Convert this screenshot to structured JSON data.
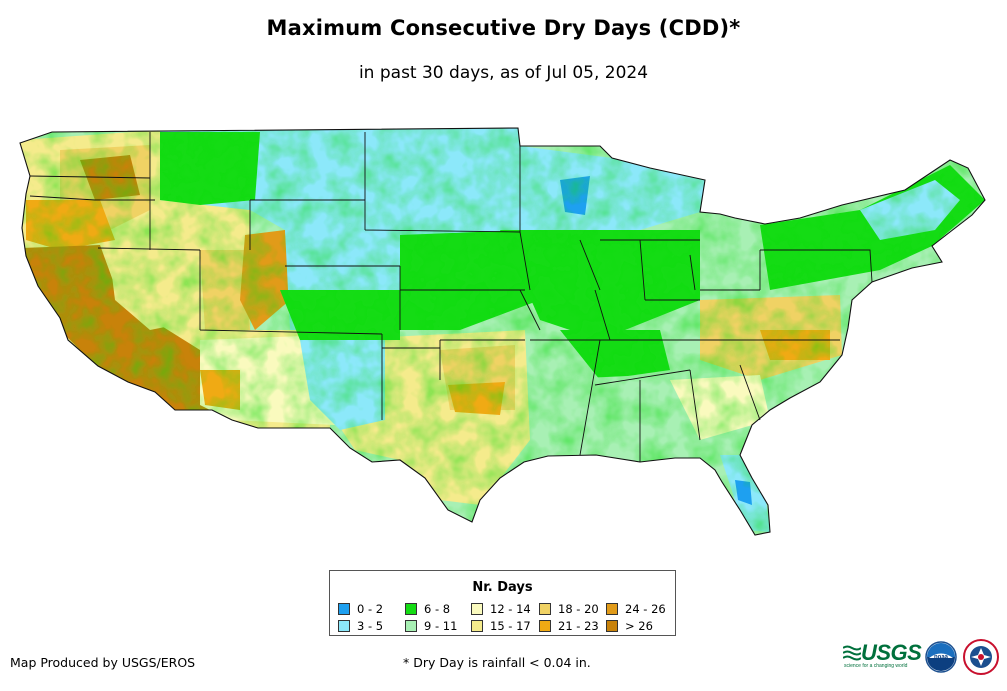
{
  "title": "Maximum Consecutive Dry Days (CDD)*",
  "subtitle": "in past 30 days, as of Jul 05, 2024",
  "legend": {
    "title": "Nr. Days",
    "items": [
      {
        "label": "0 - 2",
        "color": "#1ea0f0"
      },
      {
        "label": "3 - 5",
        "color": "#8ce8fa"
      },
      {
        "label": "6 - 8",
        "color": "#14dc14"
      },
      {
        "label": "9 - 11",
        "color": "#a8f0b4"
      },
      {
        "label": "12 - 14",
        "color": "#fafabe"
      },
      {
        "label": "15 - 17",
        "color": "#f5eb8c"
      },
      {
        "label": "18 - 20",
        "color": "#f0d264"
      },
      {
        "label": "21 - 23",
        "color": "#f0aa14"
      },
      {
        "label": "24 - 26",
        "color": "#e19b19"
      },
      {
        "label": "> 26",
        "color": "#c8820a"
      }
    ]
  },
  "footer": {
    "producer": "Map Produced by USGS/EROS",
    "footnote": "* Dry Day is rainfall < 0.04 in."
  },
  "logos": {
    "usgs": "USGS",
    "usgs_tagline": "science for a changing world",
    "noaa": "noaa"
  },
  "icons": {
    "usgs": "usgs-logo-icon",
    "noaa": "noaa-logo-icon",
    "nws": "nws-logo-icon"
  }
}
